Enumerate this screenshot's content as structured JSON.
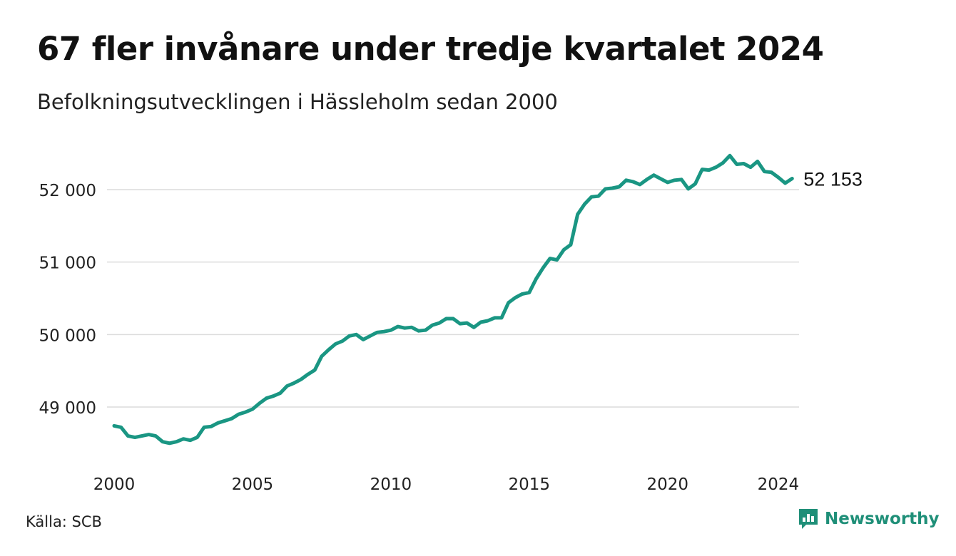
{
  "title": "67 fler invånare under tredje kvartalet 2024",
  "subtitle": "Befolkningsutvecklingen i Hässleholm sedan 2000",
  "source": "Källa: SCB",
  "brand": {
    "name": "Newsworthy",
    "icon": "newsworthy-logo-icon",
    "color": "#1f8f78"
  },
  "chart_data": {
    "type": "line",
    "title": "67 fler invånare under tredje kvartalet 2024",
    "subtitle": "Befolkningsutvecklingen i Hässleholm sedan 2000",
    "xlabel": "",
    "ylabel": "",
    "xlim": [
      2000,
      2024.75
    ],
    "ylim": [
      48350,
      52650
    ],
    "x_ticks": [
      2000,
      2005,
      2010,
      2015,
      2020,
      2024
    ],
    "x_tick_labels": [
      "2000",
      "2005",
      "2010",
      "2015",
      "2020",
      "2024"
    ],
    "y_ticks": [
      49000,
      50000,
      51000,
      52000
    ],
    "y_tick_labels": [
      "49 000",
      "50 000",
      "51 000",
      "52 000"
    ],
    "grid": "horizontal",
    "line_color": "#1a9683",
    "end_label": "52 153",
    "series": [
      {
        "x": [
          2000.0,
          2000.25,
          2000.5,
          2000.75,
          2001.0,
          2001.25,
          2001.5,
          2001.75,
          2002.0,
          2002.25,
          2002.5,
          2002.75,
          2003.0,
          2003.25,
          2003.5,
          2003.75,
          2004.0,
          2004.25,
          2004.5,
          2004.75,
          2005.0,
          2005.25,
          2005.5,
          2005.75,
          2006.0,
          2006.25,
          2006.5,
          2006.75,
          2007.0,
          2007.25,
          2007.5,
          2007.75,
          2008.0,
          2008.25,
          2008.5,
          2008.75,
          2009.0,
          2009.25,
          2009.5,
          2009.75,
          2010.0,
          2010.25,
          2010.5,
          2010.75,
          2011.0,
          2011.25,
          2011.5,
          2011.75,
          2012.0,
          2012.25,
          2012.5,
          2012.75,
          2013.0,
          2013.25,
          2013.5,
          2013.75,
          2014.0,
          2014.25,
          2014.5,
          2014.75,
          2015.0,
          2015.25,
          2015.5,
          2015.75,
          2016.0,
          2016.25,
          2016.5,
          2016.75,
          2017.0,
          2017.25,
          2017.5,
          2017.75,
          2018.0,
          2018.25,
          2018.5,
          2018.75,
          2019.0,
          2019.25,
          2019.5,
          2019.75,
          2020.0,
          2020.25,
          2020.5,
          2020.75,
          2021.0,
          2021.25,
          2021.5,
          2021.75,
          2022.0,
          2022.25,
          2022.5,
          2022.75,
          2023.0,
          2023.25,
          2023.5,
          2023.75,
          2024.0,
          2024.25,
          2024.5
        ],
        "values": [
          48740,
          48720,
          48600,
          48580,
          48600,
          48620,
          48600,
          48520,
          48500,
          48520,
          48560,
          48540,
          48580,
          48720,
          48730,
          48780,
          48810,
          48840,
          48900,
          48930,
          48970,
          49050,
          49120,
          49150,
          49190,
          49290,
          49330,
          49380,
          49450,
          49510,
          49700,
          49790,
          49870,
          49910,
          49980,
          50000,
          49930,
          49980,
          50030,
          50040,
          50060,
          50110,
          50090,
          50100,
          50050,
          50060,
          50130,
          50160,
          50220,
          50220,
          50150,
          50160,
          50100,
          50170,
          50190,
          50230,
          50230,
          50440,
          50510,
          50560,
          50580,
          50770,
          50920,
          51050,
          51030,
          51170,
          51240,
          51660,
          51800,
          51900,
          51910,
          52010,
          52020,
          52040,
          52130,
          52110,
          52070,
          52140,
          52200,
          52150,
          52100,
          52130,
          52140,
          52010,
          52080,
          52280,
          52270,
          52310,
          52370,
          52470,
          52350,
          52360,
          52310,
          52390,
          52250,
          52240,
          52170,
          52090,
          52153
        ]
      }
    ]
  }
}
